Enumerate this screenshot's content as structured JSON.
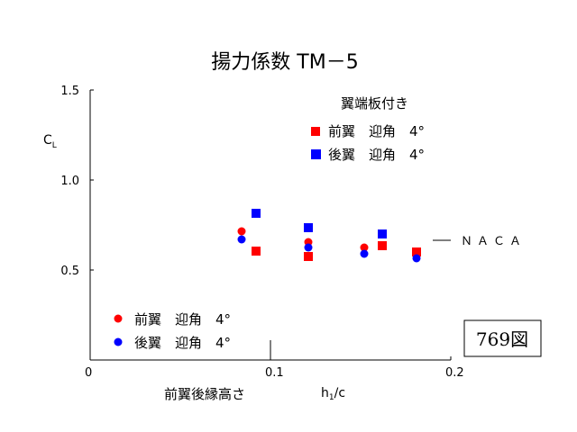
{
  "chart_data": {
    "type": "scatter",
    "title": "揚力係数 TM－5",
    "ylabel": "CL",
    "ylabel_main": "C",
    "ylabel_sub": "L",
    "xlabel": "h1/c",
    "xlabel_main": "h",
    "xlabel_sub": "1",
    "xlabel_tail": "/c",
    "xlabel_jp": "前翼後縁高さ",
    "xlim": [
      0,
      0.2
    ],
    "ylim": [
      0,
      1.5
    ],
    "x_ticks": [
      {
        "value": 0,
        "label": "0"
      },
      {
        "value": 0.1,
        "label": "0.1"
      },
      {
        "value": 0.2,
        "label": "0.2"
      }
    ],
    "y_ticks": [
      {
        "value": 0.5,
        "label": "0.5"
      },
      {
        "value": 1.0,
        "label": "1.0"
      },
      {
        "value": 1.5,
        "label": "1.5"
      }
    ],
    "legend_top_title": "翼端板付き",
    "series": [
      {
        "name": "前翼　迎角　4°",
        "group": "翼端板付き",
        "marker": "square",
        "color": "#ff0000",
        "x": [
          0.092,
          0.121,
          0.162,
          0.181
        ],
        "y": [
          0.605,
          0.575,
          0.635,
          0.6
        ]
      },
      {
        "name": "後翼　迎角　4°",
        "group": "翼端板付き",
        "marker": "square",
        "color": "#0000ff",
        "x": [
          0.092,
          0.121,
          0.162
        ],
        "y": [
          0.815,
          0.735,
          0.7
        ]
      },
      {
        "name": "前翼　迎角　4°",
        "group": "",
        "marker": "circle",
        "color": "#ff0000",
        "x": [
          0.084,
          0.121,
          0.152,
          0.181
        ],
        "y": [
          0.715,
          0.655,
          0.625,
          0.595
        ]
      },
      {
        "name": "後翼　迎角　4°",
        "group": "",
        "marker": "circle",
        "color": "#0000ff",
        "x": [
          0.084,
          0.121,
          0.152,
          0.181
        ],
        "y": [
          0.67,
          0.625,
          0.59,
          0.565
        ]
      }
    ],
    "annotations": [
      {
        "text": "ＮＡＣＡ",
        "y": 0.665
      },
      {
        "text": "769図"
      }
    ],
    "grid": false,
    "legend": {
      "top": "top-right",
      "bottom": "bottom-left"
    }
  }
}
